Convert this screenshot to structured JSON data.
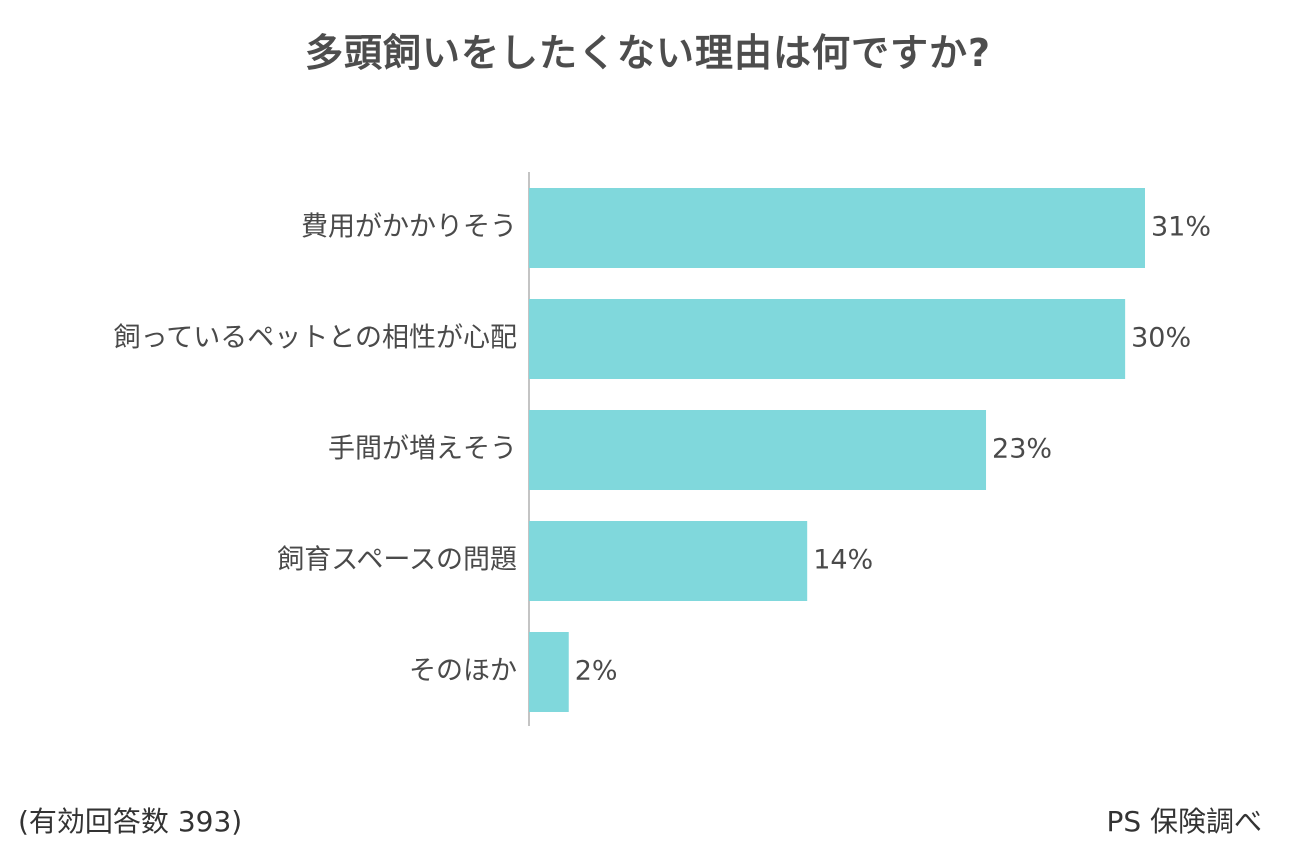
{
  "title": "多頭飼いをしたくない理由は何ですか?",
  "footnote_left": "(有効回答数 393)",
  "footnote_right": "PS 保険調べ",
  "colors": {
    "bar": "#80d8dc",
    "axis": "#b0b0b0",
    "label": "#4a4a4a",
    "value": "#4a4a4a"
  },
  "chart_data": {
    "type": "bar",
    "orientation": "horizontal",
    "title": "多頭飼いをしたくない理由は何ですか?",
    "categories": [
      "費用がかかりそう",
      "飼っているペットとの相性が心配",
      "手間が増えそう",
      "飼育スペースの問題",
      "そのほか"
    ],
    "values": [
      31,
      30,
      23,
      14,
      2
    ],
    "value_labels": [
      "31%",
      "30%",
      "23%",
      "14%",
      "2%"
    ],
    "unit": "%",
    "xlim": [
      0,
      31
    ],
    "grid": false,
    "legend": "none"
  }
}
